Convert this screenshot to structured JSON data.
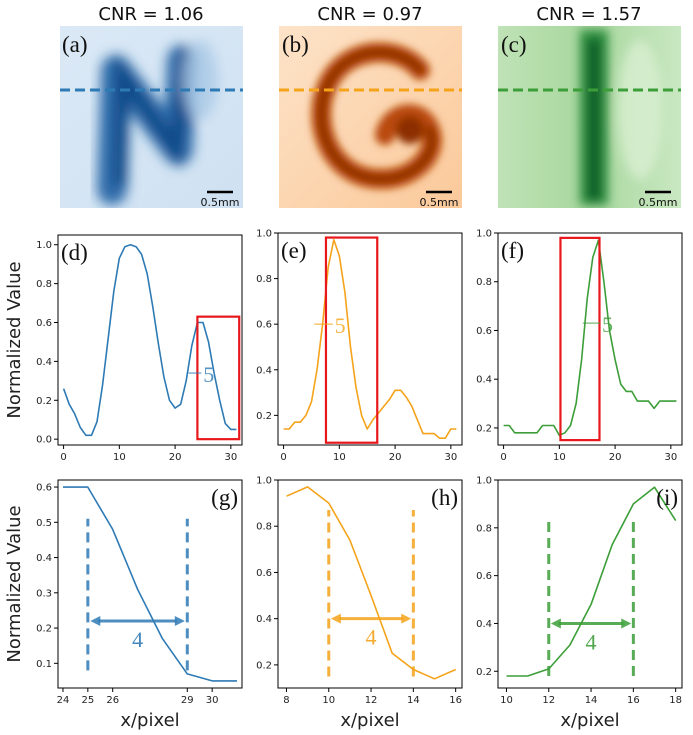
{
  "chart_data": {
    "type": "line",
    "image_panels": [
      {
        "letter": "(a)",
        "title": "CNR = 1.06",
        "scale_label": "0.5mm",
        "cmap": "blue",
        "shape": "N"
      },
      {
        "letter": "(b)",
        "title": "CNR = 0.97",
        "scale_label": "0.5mm",
        "cmap": "orange",
        "shape": "G"
      },
      {
        "letter": "(c)",
        "title": "CNR = 1.57",
        "scale_label": "0.5mm",
        "cmap": "green",
        "shape": "I"
      }
    ],
    "profile_panels": [
      {
        "letter": "(d)",
        "color": "#2e7ab5",
        "ylabel": "Normalized Value",
        "xlim": [
          -1,
          32
        ],
        "ylim": [
          -0.03,
          1.05
        ],
        "xticks": [
          0,
          10,
          20,
          30
        ],
        "yticks": [
          0.0,
          0.2,
          0.4,
          0.6,
          0.8,
          1.0
        ],
        "ytick_labels": [
          "0.0",
          "0.2",
          "0.4",
          "0.6",
          "0.8",
          "1.0"
        ],
        "x": [
          0,
          1,
          2,
          3,
          4,
          5,
          6,
          7,
          8,
          9,
          10,
          11,
          12,
          13,
          14,
          15,
          16,
          17,
          18,
          19,
          20,
          21,
          22,
          23,
          24,
          25,
          26,
          27,
          28,
          29,
          30,
          31
        ],
        "y": [
          0.26,
          0.18,
          0.13,
          0.06,
          0.02,
          0.02,
          0.09,
          0.28,
          0.52,
          0.76,
          0.93,
          0.99,
          1.0,
          0.99,
          0.95,
          0.85,
          0.68,
          0.49,
          0.32,
          0.2,
          0.16,
          0.18,
          0.3,
          0.48,
          0.6,
          0.6,
          0.5,
          0.34,
          0.2,
          0.08,
          0.05,
          0.05
        ],
        "box": {
          "x": [
            24,
            31.5
          ],
          "y": [
            0.0,
            0.63
          ]
        },
        "width_mark": {
          "x0": 22.4,
          "x1": 24.7,
          "y": 0.34,
          "label": "5"
        }
      },
      {
        "letter": "(e)",
        "color": "#f5a31a",
        "ylabel": "",
        "xlim": [
          -1,
          32
        ],
        "ylim": [
          0.07,
          1.0
        ],
        "xticks": [
          0,
          10,
          20,
          30
        ],
        "yticks": [
          0.2,
          0.4,
          0.6,
          0.8,
          1.0
        ],
        "ytick_labels": [
          "0.2",
          "0.4",
          "0.6",
          "0.8",
          "1.0"
        ],
        "x": [
          0,
          1,
          2,
          3,
          4,
          5,
          6,
          7,
          8,
          9,
          10,
          11,
          12,
          13,
          14,
          15,
          16,
          17,
          18,
          19,
          20,
          21,
          22,
          23,
          24,
          25,
          26,
          27,
          28,
          29,
          30,
          31
        ],
        "y": [
          0.14,
          0.14,
          0.17,
          0.17,
          0.2,
          0.26,
          0.4,
          0.6,
          0.85,
          0.97,
          0.9,
          0.74,
          0.5,
          0.32,
          0.2,
          0.14,
          0.18,
          0.21,
          0.24,
          0.27,
          0.31,
          0.31,
          0.28,
          0.24,
          0.18,
          0.12,
          0.12,
          0.12,
          0.1,
          0.1,
          0.14,
          0.14
        ],
        "box": {
          "x": [
            7.6,
            16.8
          ],
          "y": [
            0.08,
            0.98
          ]
        },
        "width_mark": {
          "x0": 5.5,
          "x1": 8.8,
          "y": 0.6,
          "label": "5"
        }
      },
      {
        "letter": "(f)",
        "color": "#3c9e38",
        "ylabel": "",
        "xlim": [
          -1,
          32
        ],
        "ylim": [
          0.13,
          1.0
        ],
        "xticks": [
          0,
          10,
          20,
          30
        ],
        "yticks": [
          0.2,
          0.4,
          0.6,
          0.8,
          1.0
        ],
        "ytick_labels": [
          "0.2",
          "0.4",
          "0.6",
          "0.8",
          "1.0"
        ],
        "x": [
          0,
          1,
          2,
          3,
          4,
          5,
          6,
          7,
          8,
          9,
          10,
          11,
          12,
          13,
          14,
          15,
          16,
          17,
          18,
          19,
          20,
          21,
          22,
          23,
          24,
          25,
          26,
          27,
          28,
          29,
          30,
          31
        ],
        "y": [
          0.21,
          0.21,
          0.18,
          0.18,
          0.18,
          0.18,
          0.18,
          0.21,
          0.21,
          0.21,
          0.17,
          0.18,
          0.21,
          0.3,
          0.48,
          0.73,
          0.9,
          0.97,
          0.8,
          0.6,
          0.48,
          0.38,
          0.35,
          0.35,
          0.31,
          0.31,
          0.31,
          0.28,
          0.31,
          0.31,
          0.31,
          0.31
        ],
        "box": {
          "x": [
            10.2,
            17.2
          ],
          "y": [
            0.15,
            0.98
          ]
        },
        "width_mark": {
          "x0": 14.2,
          "x1": 17.3,
          "y": 0.63,
          "label": "5"
        }
      },
      {
        "letter": "(g)",
        "color": "#2e7ab5",
        "ylabel": "Normalized Value",
        "xlabel": "x/pixel",
        "xlim": [
          23.8,
          31.2
        ],
        "ylim": [
          0.03,
          0.62
        ],
        "xticks": [
          24,
          25,
          26,
          29,
          30
        ],
        "yticks": [
          0.1,
          0.2,
          0.3,
          0.4,
          0.5,
          0.6
        ],
        "ytick_labels": [
          "0.1",
          "0.2",
          "0.3",
          "0.4",
          "0.5",
          "0.6"
        ],
        "x": [
          24,
          25,
          26,
          27,
          28,
          29,
          30,
          31
        ],
        "y": [
          0.6,
          0.6,
          0.48,
          0.31,
          0.17,
          0.07,
          0.05,
          0.05
        ],
        "dashes": {
          "x": [
            25,
            29
          ],
          "y": [
            0.08,
            0.51
          ]
        },
        "width_mark": {
          "x0": 25.1,
          "x1": 28.9,
          "y": 0.22,
          "label": "4"
        }
      },
      {
        "letter": "(h)",
        "color": "#f5a31a",
        "ylabel": "",
        "xlabel": "x/pixel",
        "xlim": [
          7.6,
          16.3
        ],
        "ylim": [
          0.1,
          1.0
        ],
        "xticks": [
          8,
          10,
          12,
          14,
          16
        ],
        "yticks": [
          0.2,
          0.4,
          0.6,
          0.8,
          1.0
        ],
        "ytick_labels": [
          "0.2",
          "0.4",
          "0.6",
          "0.8",
          "1.0"
        ],
        "x": [
          8,
          9,
          10,
          11,
          12,
          13,
          14,
          15,
          16
        ],
        "y": [
          0.93,
          0.97,
          0.9,
          0.74,
          0.5,
          0.25,
          0.18,
          0.14,
          0.18
        ],
        "dashes": {
          "x": [
            10,
            14
          ],
          "y": [
            0.15,
            0.87
          ]
        },
        "width_mark": {
          "x0": 10.1,
          "x1": 13.9,
          "y": 0.4,
          "label": "4"
        }
      },
      {
        "letter": "(i)",
        "color": "#3c9e38",
        "ylabel": "",
        "xlabel": "x/pixel",
        "xlim": [
          9.6,
          18.3
        ],
        "ylim": [
          0.13,
          1.0
        ],
        "xticks": [
          10,
          12,
          14,
          16,
          18
        ],
        "yticks": [
          0.2,
          0.4,
          0.6,
          0.8,
          1.0
        ],
        "ytick_labels": [
          "0.2",
          "0.4",
          "0.6",
          "0.8",
          "1.0"
        ],
        "x": [
          10,
          11,
          12,
          13,
          14,
          15,
          16,
          17,
          18
        ],
        "y": [
          0.18,
          0.18,
          0.21,
          0.31,
          0.48,
          0.73,
          0.9,
          0.97,
          0.83
        ],
        "dashes": {
          "x": [
            12,
            16
          ],
          "y": [
            0.18,
            0.84
          ]
        },
        "width_mark": {
          "x0": 12.1,
          "x1": 15.9,
          "y": 0.4,
          "label": "4"
        }
      }
    ]
  }
}
